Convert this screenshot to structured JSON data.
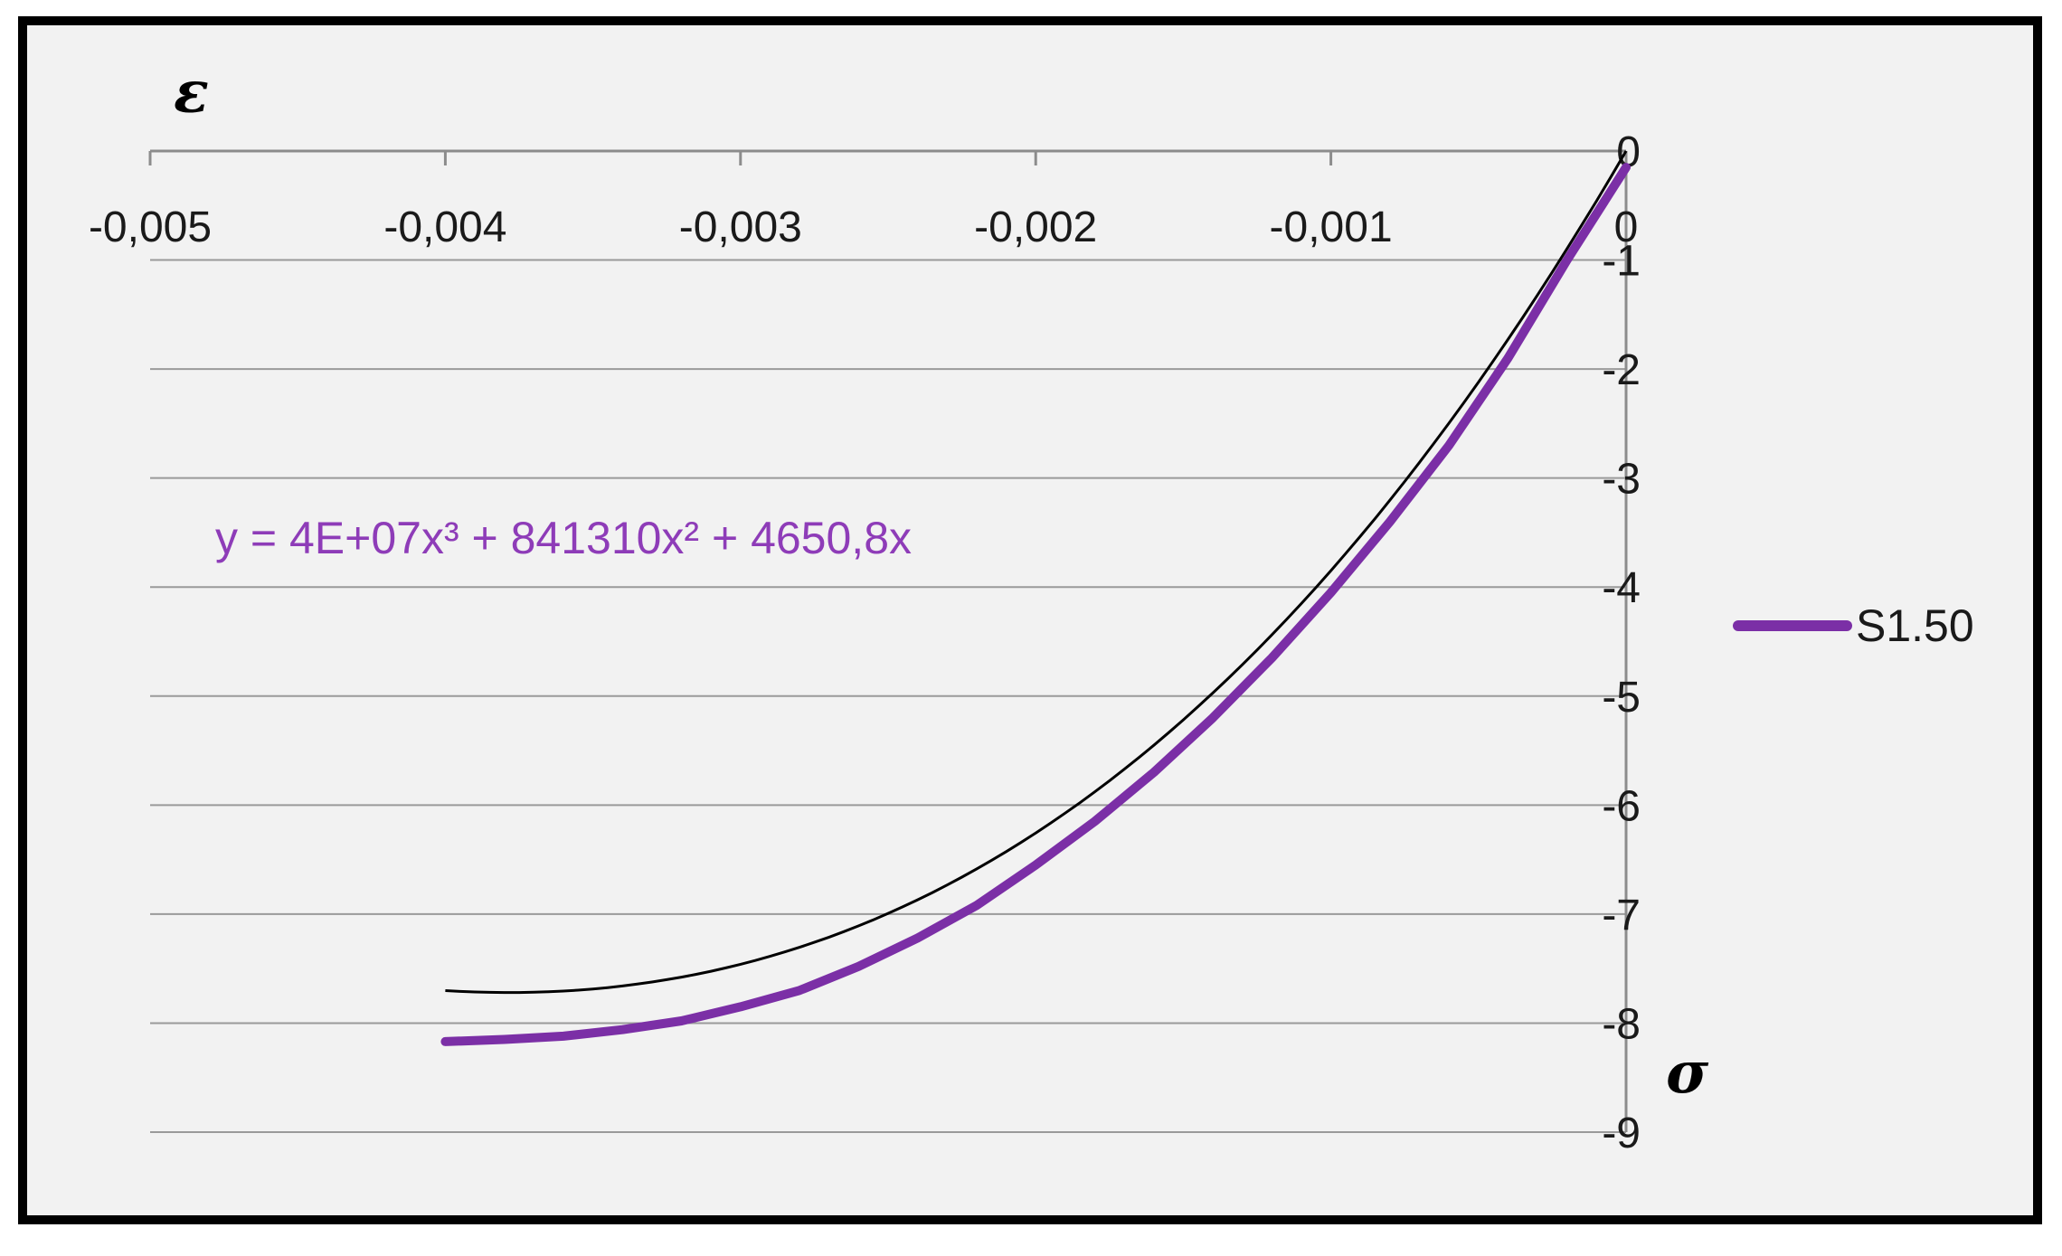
{
  "chart_data": {
    "type": "line",
    "x_axis_label": "σ",
    "y_axis_label": "ε",
    "xlim": [
      -0.005,
      0
    ],
    "ylim": [
      -9,
      0
    ],
    "x_ticks": [
      "-0,005",
      "-0,004",
      "-0,003",
      "-0,002",
      "-0,001",
      "0"
    ],
    "y_ticks": [
      "0",
      "-1",
      "-2",
      "-3",
      "-4",
      "-5",
      "-6",
      "-7",
      "-8",
      "-9"
    ],
    "grid": true,
    "legend_position": "right",
    "series": [
      {
        "name": "S1.50",
        "color": "#7b2fa6",
        "x": [
          0,
          -0.0002,
          -0.0004,
          -0.0006,
          -0.0008,
          -0.001,
          -0.0012,
          -0.0014,
          -0.0016,
          -0.0018,
          -0.002,
          -0.0022,
          -0.0024,
          -0.0026,
          -0.0028,
          -0.003,
          -0.0032,
          -0.0034,
          -0.0036,
          -0.0038,
          -0.004
        ],
        "y": [
          -0.15,
          -1.0,
          -1.9,
          -2.7,
          -3.4,
          -4.05,
          -4.65,
          -5.2,
          -5.7,
          -6.15,
          -6.55,
          -6.92,
          -7.22,
          -7.48,
          -7.7,
          -7.85,
          -7.98,
          -8.06,
          -8.12,
          -8.15,
          -8.17
        ]
      }
    ],
    "trendline": {
      "color": "#000000",
      "equation": "y = 4E+07x³ + 841310x² + 4650,8x",
      "coefficients": {
        "a3": 40000000,
        "a2": 841310,
        "a1": 4650.8
      },
      "x_range": [
        -0.004,
        0
      ]
    }
  }
}
